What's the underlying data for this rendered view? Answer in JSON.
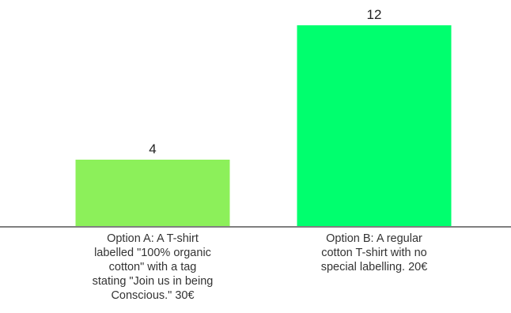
{
  "chart_data": {
    "type": "bar",
    "categories": [
      "Option A: A T-shirt\nlabelled \"100% organic\ncotton\" with a tag\nstating \"Join us in being\nConscious.\" 30€",
      "Option B: A regular\ncotton T-shirt with no\nspecial labelling. 20€"
    ],
    "values": [
      4,
      12
    ],
    "data_labels": [
      "4",
      "12"
    ],
    "colors": [
      "#8cf05a",
      "#00ff6e"
    ],
    "axis_color": "#808080",
    "ylim": [
      0,
      12
    ],
    "grid": false,
    "legend": "none"
  }
}
